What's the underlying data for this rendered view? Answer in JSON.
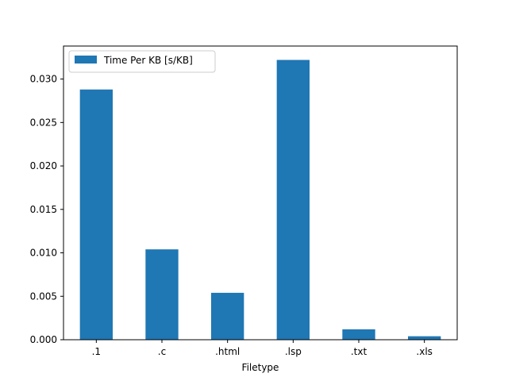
{
  "chart_data": {
    "type": "bar",
    "title": "",
    "xlabel": "Filetype",
    "ylabel": "",
    "categories": [
      ".1",
      ".c",
      ".html",
      ".lsp",
      ".txt",
      ".xls"
    ],
    "series": [
      {
        "name": "Time Per KB [s/KB]",
        "color": "#1f77b4",
        "values": [
          0.0288,
          0.0104,
          0.0054,
          0.0322,
          0.0012,
          0.0004
        ]
      }
    ],
    "ylim": [
      0,
      0.0338
    ],
    "yticks": [
      0.0,
      0.005,
      0.01,
      0.015,
      0.02,
      0.025,
      0.03
    ],
    "ytick_labels": [
      "0.000",
      "0.005",
      "0.010",
      "0.015",
      "0.020",
      "0.025",
      "0.030"
    ],
    "grid": false,
    "legend_position": "top-left"
  }
}
